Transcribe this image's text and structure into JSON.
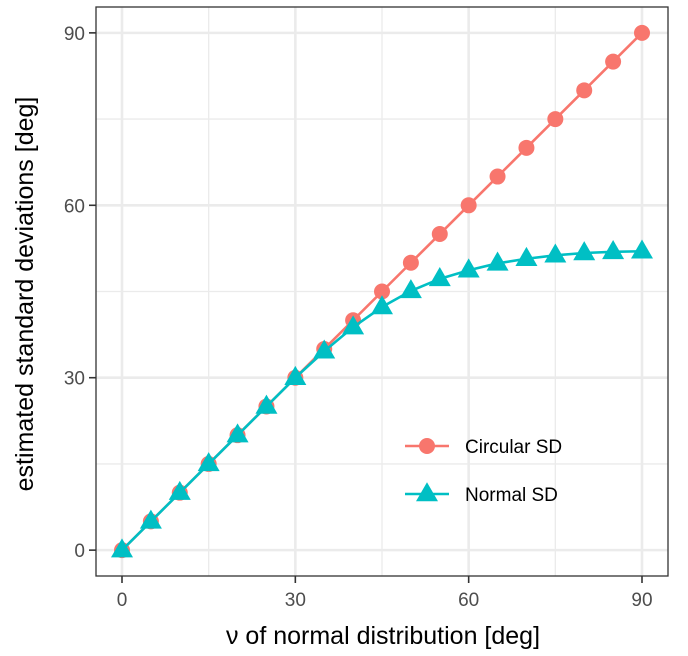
{
  "chart_data": {
    "type": "line",
    "xlabel": "ν of normal distribution [deg]",
    "ylabel": "estimated standard deviations [deg]",
    "xlim": [
      -4.5,
      94.5
    ],
    "ylim": [
      -4.5,
      94.5
    ],
    "x_ticks": [
      0,
      30,
      60,
      90
    ],
    "y_ticks": [
      0,
      30,
      60,
      90
    ],
    "x_tick_labels": [
      "0",
      "30",
      "60",
      "90"
    ],
    "y_tick_labels": [
      "0",
      "30",
      "60",
      "90"
    ],
    "grid": true,
    "legend_position": "bottom-right",
    "series": [
      {
        "name": "Circular SD",
        "color": "#f8766d",
        "marker": "circle",
        "x": [
          0,
          5,
          10,
          15,
          20,
          25,
          30,
          35,
          40,
          45,
          50,
          55,
          60,
          65,
          70,
          75,
          80,
          85,
          90
        ],
        "values": [
          0,
          5,
          10,
          15,
          20,
          25,
          30,
          35,
          40,
          45,
          50,
          55,
          60,
          65,
          70,
          75,
          80,
          85,
          90
        ]
      },
      {
        "name": "Normal SD",
        "color": "#00bfc4",
        "marker": "triangle",
        "x": [
          0,
          5,
          10,
          15,
          20,
          25,
          30,
          35,
          40,
          45,
          50,
          55,
          60,
          65,
          70,
          75,
          80,
          85,
          90
        ],
        "values": [
          0,
          5,
          10,
          15,
          20,
          25,
          30,
          34.6,
          38.8,
          42.3,
          45.1,
          47.2,
          48.7,
          49.9,
          50.7,
          51.3,
          51.7,
          51.9,
          52.0
        ]
      }
    ]
  }
}
